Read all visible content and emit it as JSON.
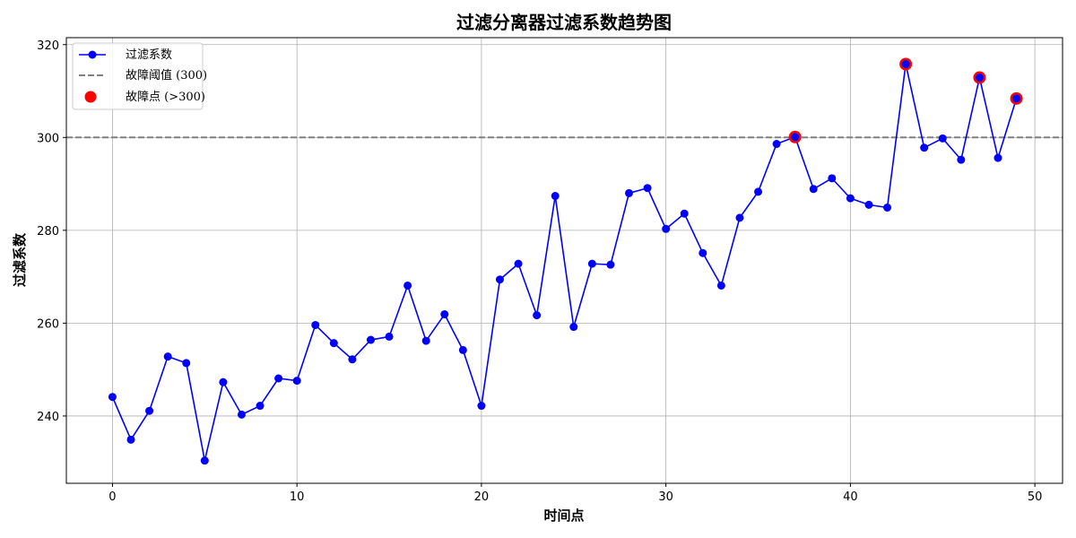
{
  "chart_data": {
    "type": "line",
    "title": "过滤分离器过滤系数趋势图",
    "xlabel": "时间点",
    "ylabel": "过滤系数",
    "xlim": [
      -2.5,
      51.5
    ],
    "ylim": [
      225.5,
      321.5
    ],
    "xticks": [
      0,
      10,
      20,
      30,
      40,
      50
    ],
    "yticks": [
      240,
      260,
      280,
      300,
      320
    ],
    "grid": true,
    "legend_position": "top-left",
    "threshold": {
      "name": "故障阈值 (300)",
      "value": 300,
      "color": "#808080",
      "style": "dashed"
    },
    "series": [
      {
        "name": "过滤系数",
        "color": "#0000ff",
        "marker": "circle",
        "x": [
          0,
          1,
          2,
          3,
          4,
          5,
          6,
          7,
          8,
          9,
          10,
          11,
          12,
          13,
          14,
          15,
          16,
          17,
          18,
          19,
          20,
          21,
          22,
          23,
          24,
          25,
          26,
          27,
          28,
          29,
          30,
          31,
          32,
          33,
          34,
          35,
          36,
          37,
          38,
          39,
          40,
          41,
          42,
          43,
          44,
          45,
          46,
          47,
          48,
          49
        ],
        "y": [
          244.1,
          234.9,
          241.1,
          252.8,
          251.4,
          230.4,
          247.3,
          240.3,
          242.2,
          248.1,
          247.6,
          259.6,
          255.7,
          252.2,
          256.4,
          257.1,
          268.1,
          256.2,
          261.9,
          254.2,
          242.2,
          269.4,
          272.8,
          261.7,
          287.4,
          259.2,
          272.8,
          272.6,
          288.0,
          289.1,
          280.3,
          283.6,
          275.1,
          268.1,
          282.7,
          288.3,
          298.6,
          300.1,
          288.9,
          291.2,
          286.9,
          285.5,
          284.9,
          315.8,
          297.8,
          299.8,
          295.2,
          312.9,
          295.6,
          308.4
        ]
      }
    ],
    "faults": {
      "name": "故障点 (>300)",
      "color": "#ff0000",
      "x": [
        37,
        43,
        47,
        49
      ],
      "y": [
        300.1,
        315.8,
        312.9,
        308.4
      ]
    }
  }
}
